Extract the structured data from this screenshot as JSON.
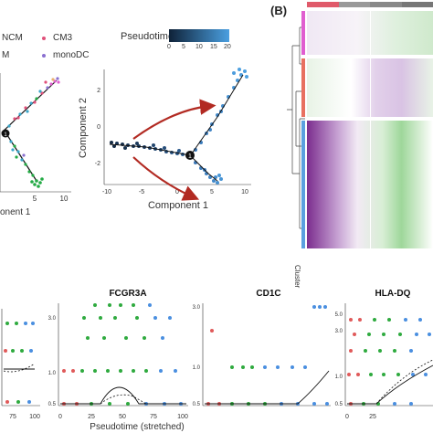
{
  "panel_a_left": {
    "legend_items": [
      "NCM",
      "CM3",
      "M",
      "monoDC"
    ],
    "legend_colors": [
      "#3aa6c9",
      "#e0507a",
      "#22aa44",
      "#8a6fd0"
    ],
    "x_axis_label": "onent 1",
    "x_ticks": [
      "5",
      "10"
    ],
    "branch_node_label": "1"
  },
  "panel_a_right": {
    "colorbar_title": "Pseudotime",
    "colorbar_ticks": [
      "0",
      "5",
      "10",
      "15",
      "20"
    ],
    "colorbar_colors": [
      "#0f2238",
      "#4a9fe0"
    ],
    "x_axis_label": "Component 1",
    "y_axis_label": "Component 2",
    "x_ticks": [
      "-10",
      "-5",
      "0",
      "5",
      "10"
    ],
    "y_ticks": [
      "-2",
      "0",
      "2"
    ],
    "branch_node_label": "1",
    "arrow_color": "#b22a22"
  },
  "panel_b": {
    "label": "(B)",
    "cluster_label": "Cluster",
    "cluster_colors": [
      "#e05ed0",
      "#e87060",
      "#5aa0e0"
    ],
    "top_bar_colors": [
      "#e05a6a",
      "#999999",
      "#888888",
      "#777777"
    ],
    "heat_colors": [
      "#7b2d8e",
      "#ffffff",
      "#2f9a30"
    ]
  },
  "panel_c": {
    "x_axis_label": "Pseudotime (stretched)",
    "y_ticks": [
      "0.5",
      "1.0",
      "3.0",
      "5.0"
    ],
    "x_ticks": [
      "0",
      "25",
      "50",
      "75",
      "100"
    ],
    "point_colors": [
      "#e05a5a",
      "#2faa3f",
      "#4a8fe0"
    ],
    "plots": [
      {
        "title": "",
        "y_ticks": [
          ""
        ]
      },
      {
        "title": "FCGR3A",
        "y_ticks": [
          "3.0",
          "1.0",
          "0.5"
        ]
      },
      {
        "title": "CD1C",
        "y_ticks": [
          "3.0",
          "1.0",
          "0.5"
        ]
      },
      {
        "title": "HLA-DQ",
        "y_ticks": [
          "5.0",
          "3.0",
          "1.0",
          "0.5"
        ]
      }
    ]
  }
}
